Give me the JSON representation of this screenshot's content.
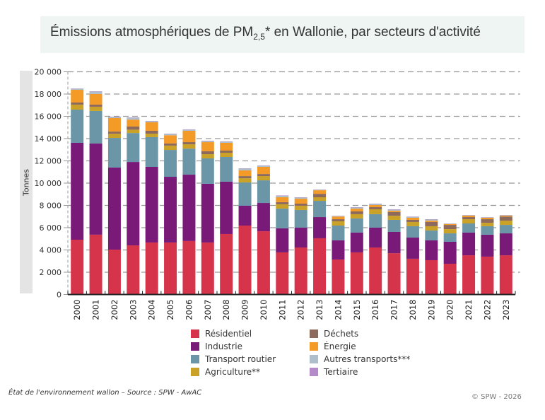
{
  "title_main": "Émissions atmosphériques de PM",
  "title_sub": "2,5",
  "title_rest": "* en Wallonie, par secteurs d'activité",
  "source": "État de l'environnement wallon – Source : SPW - AwAC",
  "copyright": "© SPW - 2026",
  "chart_data": {
    "type": "bar",
    "stacked": true,
    "title": "Émissions atmosphériques de PM2,5* en Wallonie, par secteurs d'activité",
    "xlabel": "",
    "ylabel": "Tonnes",
    "ylim": [
      0,
      20000
    ],
    "yticks": [
      0,
      2000,
      4000,
      6000,
      8000,
      10000,
      12000,
      14000,
      16000,
      18000,
      20000
    ],
    "ytick_labels": [
      "0",
      "2 000",
      "4 000",
      "6 000",
      "8 000",
      "10 000",
      "12 000",
      "14 000",
      "16 000",
      "18 000",
      "20 000"
    ],
    "grid": true,
    "legend_position": "bottom",
    "categories": [
      "2000",
      "2001",
      "2002",
      "2003",
      "2004",
      "2005",
      "2006",
      "2007",
      "2008",
      "2009",
      "2010",
      "2011",
      "2012",
      "2013",
      "2014",
      "2015",
      "2016",
      "2017",
      "2018",
      "2019",
      "2020",
      "2021",
      "2022",
      "2023"
    ],
    "series": [
      {
        "name": "Résidentiel",
        "color": "#d6344a",
        "values": [
          4920,
          5370,
          4030,
          4410,
          4670,
          4670,
          4800,
          4670,
          5430,
          6190,
          5680,
          3780,
          4220,
          5050,
          3140,
          3780,
          4220,
          3710,
          3210,
          3080,
          2760,
          3520,
          3400,
          3520
        ]
      },
      {
        "name": "Industrie",
        "color": "#7a1a78",
        "values": [
          8700,
          8190,
          7370,
          7490,
          6790,
          5900,
          5960,
          5270,
          4700,
          1780,
          2540,
          2160,
          1780,
          1900,
          1720,
          1780,
          1780,
          1910,
          1900,
          1780,
          1970,
          2040,
          1970,
          1970
        ]
      },
      {
        "name": "Transport routier",
        "color": "#6b96a8",
        "values": [
          2980,
          2920,
          2660,
          2600,
          2670,
          2410,
          2340,
          2280,
          2220,
          2090,
          2030,
          1770,
          1590,
          1460,
          1330,
          1270,
          1210,
          1080,
          1020,
          890,
          760,
          820,
          760,
          760
        ]
      },
      {
        "name": "Agriculture**",
        "color": "#c9a227",
        "values": [
          450,
          380,
          380,
          300,
          310,
          390,
          390,
          380,
          380,
          380,
          380,
          390,
          380,
          320,
          380,
          380,
          440,
          370,
          380,
          380,
          380,
          380,
          310,
          380
        ]
      },
      {
        "name": "Déchets",
        "color": "#8d6a5c",
        "values": [
          190,
          190,
          190,
          280,
          260,
          190,
          190,
          260,
          190,
          190,
          190,
          190,
          190,
          310,
          190,
          250,
          190,
          330,
          190,
          380,
          380,
          190,
          320,
          370
        ]
      },
      {
        "name": "Énergie",
        "color": "#f39a27",
        "values": [
          1140,
          950,
          1210,
          620,
          760,
          740,
          1020,
          820,
          700,
          510,
          640,
          440,
          440,
          320,
          240,
          250,
          190,
          120,
          190,
          120,
          70,
          130,
          130,
          80
        ]
      },
      {
        "name": "Autres transports***",
        "color": "#aebfcb",
        "values": [
          100,
          220,
          100,
          170,
          100,
          110,
          100,
          100,
          100,
          160,
          100,
          140,
          100,
          50,
          50,
          100,
          100,
          100,
          80,
          100,
          40,
          40,
          40,
          40
        ]
      },
      {
        "name": "Tertiaire",
        "color": "#b48ac9",
        "values": [
          20,
          30,
          30,
          30,
          30,
          30,
          30,
          30,
          30,
          30,
          30,
          30,
          30,
          20,
          20,
          30,
          30,
          30,
          30,
          30,
          20,
          20,
          20,
          20
        ]
      }
    ]
  }
}
